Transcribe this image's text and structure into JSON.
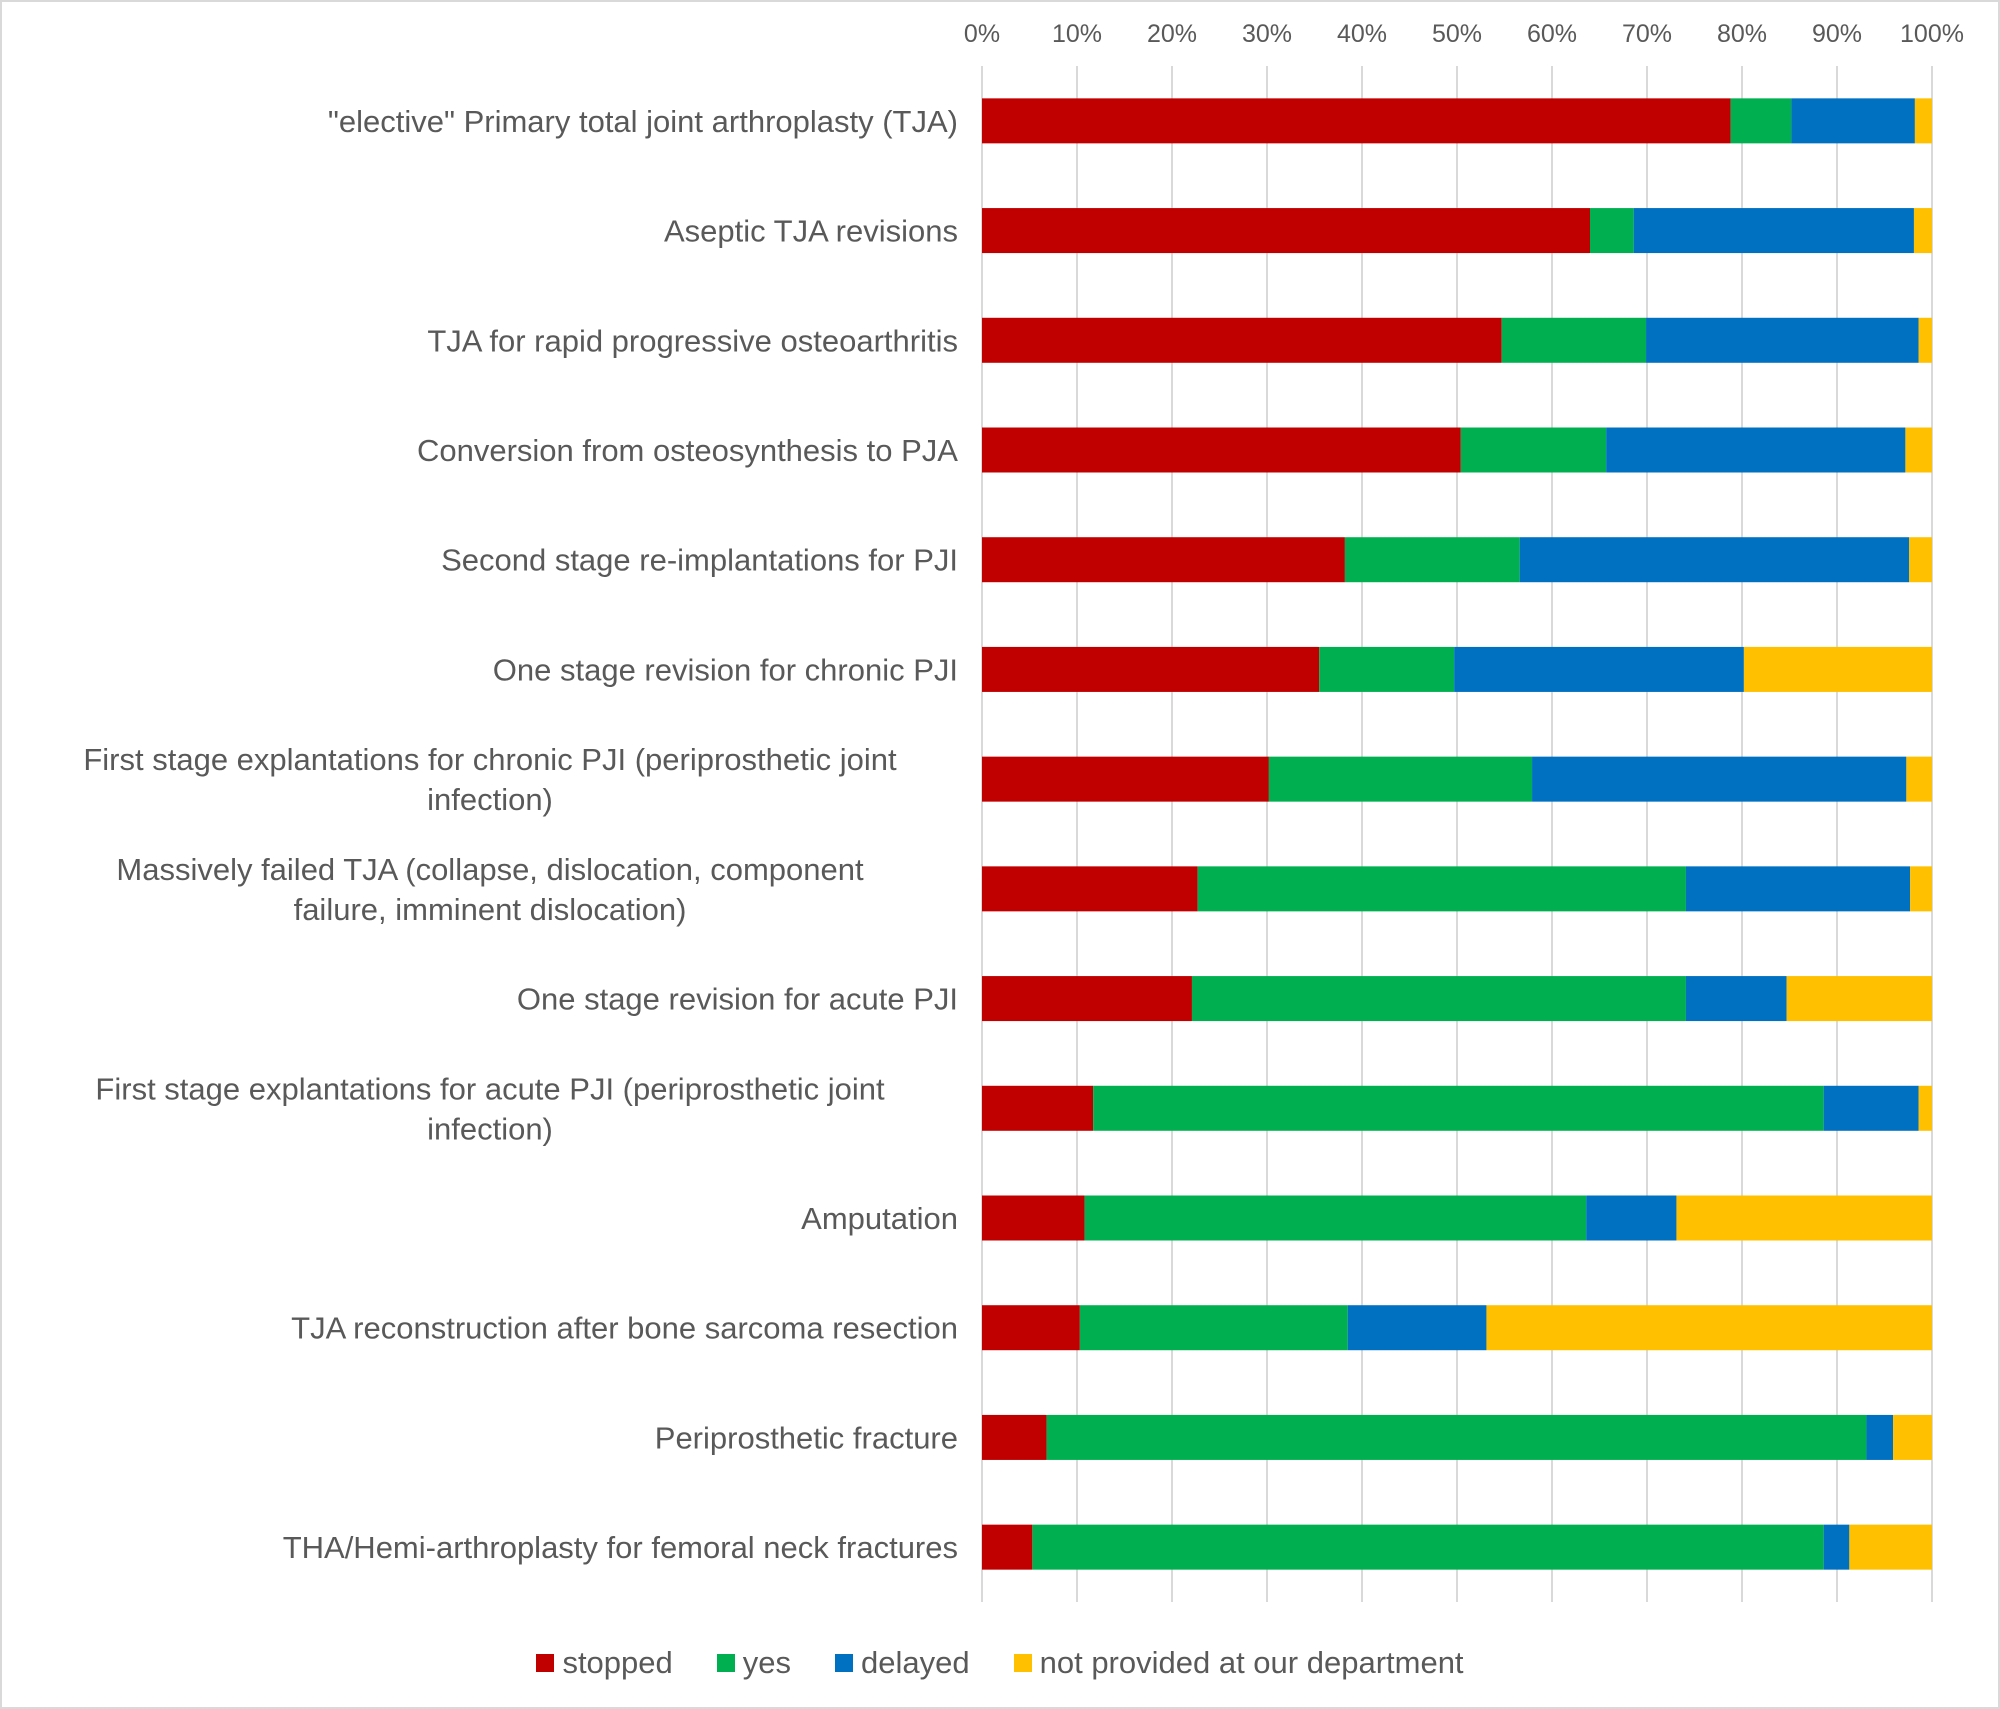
{
  "chart_data": {
    "type": "bar",
    "orientation": "horizontal",
    "stacked": "percent",
    "title": "",
    "xlabel": "",
    "ylabel": "",
    "xlim": [
      0,
      100
    ],
    "x_ticks": [
      "0%",
      "10%",
      "20%",
      "30%",
      "40%",
      "50%",
      "60%",
      "70%",
      "80%",
      "90%",
      "100%"
    ],
    "x_axis_position": "top",
    "grid": true,
    "legend_position": "bottom",
    "categories": [
      "\"elective\" Primary total joint arthroplasty (TJA)",
      "Aseptic TJA revisions",
      "TJA for rapid progressive osteoarthritis",
      "Conversion from osteosynthesis to PJA",
      "Second stage re-implantations for PJI",
      "One stage revision for chronic PJI",
      "First stage explantations for chronic PJI (periprosthetic joint infection)",
      "Massively failed TJA (collapse, dislocation, component failure, imminent dislocation)",
      "One stage revision for acute PJI",
      "First stage explantations for acute PJI (periprosthetic joint infection)",
      "Amputation",
      "TJA reconstruction after bone sarcoma resection",
      "Periprosthetic fracture",
      "THA/Hemi-arthroplasty for femoral neck fractures"
    ],
    "category_lines": [
      [
        "\"elective\" Primary total joint arthroplasty (TJA)"
      ],
      [
        "Aseptic TJA revisions"
      ],
      [
        "TJA for rapid progressive osteoarthritis"
      ],
      [
        "Conversion from osteosynthesis to PJA"
      ],
      [
        "Second stage re-implantations for PJI"
      ],
      [
        "One stage revision for chronic PJI"
      ],
      [
        "First stage explantations for chronic PJI (periprosthetic joint",
        "infection)"
      ],
      [
        "Massively failed TJA (collapse, dislocation, component",
        "failure, imminent dislocation)"
      ],
      [
        "One stage revision for acute PJI"
      ],
      [
        "First stage explantations for acute PJI (periprosthetic joint",
        "infection)"
      ],
      [
        "Amputation"
      ],
      [
        "TJA reconstruction after bone sarcoma resection"
      ],
      [
        "Periprosthetic fracture"
      ],
      [
        "THA/Hemi-arthroplasty for femoral neck fractures"
      ]
    ],
    "series": [
      {
        "name": "stopped",
        "color": "#c00000",
        "values": [
          78.8,
          64.0,
          54.7,
          50.4,
          38.2,
          35.5,
          30.2,
          22.7,
          22.1,
          11.7,
          10.8,
          10.3,
          6.8,
          5.3
        ]
      },
      {
        "name": "yes",
        "color": "#00b050",
        "values": [
          6.4,
          4.6,
          15.2,
          15.3,
          18.4,
          14.2,
          27.7,
          51.4,
          52.0,
          76.9,
          52.8,
          28.2,
          86.3,
          83.3
        ]
      },
      {
        "name": "delayed",
        "color": "#0070c0",
        "values": [
          13.0,
          29.5,
          28.7,
          31.5,
          41.0,
          30.5,
          39.4,
          23.6,
          10.6,
          10.0,
          9.5,
          14.6,
          2.8,
          2.7
        ]
      },
      {
        "name": "not provided at our department",
        "color": "#ffc000",
        "values": [
          1.8,
          1.9,
          1.4,
          2.8,
          2.4,
          19.8,
          2.7,
          2.3,
          15.3,
          1.4,
          26.9,
          46.9,
          4.1,
          8.7
        ]
      }
    ]
  },
  "legend": {
    "items": [
      {
        "label": "stopped",
        "color": "#c00000"
      },
      {
        "label": "yes",
        "color": "#00b050"
      },
      {
        "label": "delayed",
        "color": "#0070c0"
      },
      {
        "label": "not provided at our department",
        "color": "#ffc000"
      }
    ]
  },
  "colors": {
    "gridline": "#d9d9d9",
    "text": "#595959",
    "border": "#d9d9d9"
  }
}
